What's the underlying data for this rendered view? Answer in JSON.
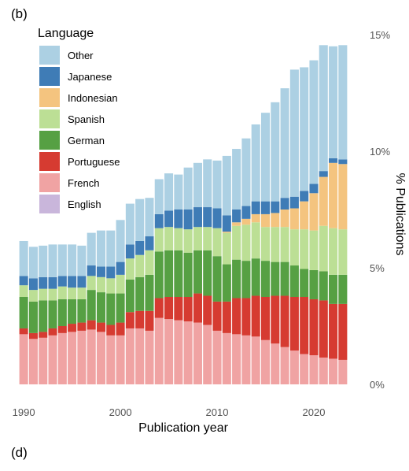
{
  "panel_labels": {
    "top": "(b)",
    "bottom": "(d)"
  },
  "chart_data": {
    "type": "bar",
    "stacked": true,
    "title": "",
    "xlabel": "Publication year",
    "ylabel": "% Publications",
    "ylim": [
      0,
      15
    ],
    "xlim": [
      1989.5,
      2023.5
    ],
    "x_ticks": [
      1990,
      2000,
      2010,
      2020
    ],
    "x_tick_labels": [
      "1990",
      "2000",
      "2010",
      "2020"
    ],
    "y_ticks": [
      0,
      5,
      10,
      15
    ],
    "y_tick_labels": [
      "0%",
      "5%",
      "10%",
      "15%"
    ],
    "y_axis_position": "right",
    "grid": false,
    "legend": {
      "title": "Language",
      "placement": "top-left",
      "entries": [
        "Other",
        "Japanese",
        "Indonesian",
        "Spanish",
        "German",
        "Portuguese",
        "French",
        "English"
      ]
    },
    "colors": {
      "English": "#c9b6db",
      "French": "#f0a3a3",
      "Portuguese": "#d63b31",
      "German": "#56a043",
      "Spanish": "#bcdf95",
      "Indonesian": "#f4c47f",
      "Japanese": "#3f7cb6",
      "Other": "#acd0e3"
    },
    "x": [
      1990,
      1991,
      1992,
      1993,
      1994,
      1995,
      1996,
      1997,
      1998,
      1999,
      2000,
      2001,
      2002,
      2003,
      2004,
      2005,
      2006,
      2007,
      2008,
      2009,
      2010,
      2011,
      2012,
      2013,
      2014,
      2015,
      2016,
      2017,
      2018,
      2019,
      2020,
      2021,
      2022,
      2023
    ],
    "series": [
      {
        "name": "English",
        "values": [
          0,
          0,
          0,
          0,
          0,
          0,
          0,
          0,
          0,
          0,
          0,
          0,
          0,
          0,
          0,
          0,
          0,
          0,
          0,
          0,
          0,
          0,
          0,
          0,
          0,
          0,
          0,
          0,
          0,
          0,
          0,
          0,
          0,
          0
        ]
      },
      {
        "name": "French",
        "values": [
          2.15,
          1.95,
          2.0,
          2.1,
          2.2,
          2.25,
          2.3,
          2.35,
          2.25,
          2.1,
          2.1,
          2.4,
          2.4,
          2.3,
          2.85,
          2.8,
          2.75,
          2.7,
          2.65,
          2.55,
          2.3,
          2.2,
          2.15,
          2.1,
          2.05,
          1.9,
          1.75,
          1.6,
          1.45,
          1.3,
          1.25,
          1.15,
          1.1,
          1.05
        ]
      },
      {
        "name": "Portuguese",
        "values": [
          0.25,
          0.25,
          0.25,
          0.3,
          0.3,
          0.35,
          0.35,
          0.4,
          0.4,
          0.45,
          0.55,
          0.7,
          0.75,
          0.85,
          0.85,
          0.95,
          1.0,
          1.05,
          1.25,
          1.25,
          1.25,
          1.35,
          1.55,
          1.6,
          1.75,
          1.85,
          2.05,
          2.2,
          2.3,
          2.45,
          2.4,
          2.45,
          2.35,
          2.4
        ]
      },
      {
        "name": "German",
        "values": [
          1.35,
          1.35,
          1.35,
          1.2,
          1.15,
          1.05,
          1.0,
          1.3,
          1.3,
          1.35,
          1.25,
          1.4,
          1.45,
          1.55,
          2.0,
          2.0,
          2.0,
          1.9,
          1.85,
          1.95,
          1.95,
          1.6,
          1.65,
          1.6,
          1.6,
          1.55,
          1.45,
          1.45,
          1.35,
          1.2,
          1.25,
          1.25,
          1.25,
          1.25
        ]
      },
      {
        "name": "Spanish",
        "values": [
          0.5,
          0.5,
          0.5,
          0.5,
          0.55,
          0.5,
          0.5,
          0.6,
          0.65,
          0.65,
          0.8,
          0.9,
          0.95,
          1.05,
          1.0,
          1.0,
          0.95,
          1.0,
          1.0,
          1.0,
          1.2,
          1.35,
          1.45,
          1.55,
          1.55,
          1.45,
          1.5,
          1.5,
          1.55,
          1.7,
          1.7,
          1.95,
          2.0,
          1.95
        ]
      },
      {
        "name": "Indonesian",
        "values": [
          0,
          0,
          0,
          0,
          0,
          0,
          0,
          0,
          0,
          0,
          0,
          0,
          0,
          0,
          0,
          0,
          0,
          0,
          0,
          0,
          0,
          0.05,
          0.15,
          0.25,
          0.35,
          0.55,
          0.6,
          0.75,
          0.9,
          1.2,
          1.6,
          2.1,
          2.8,
          2.8
        ]
      },
      {
        "name": "Japanese",
        "values": [
          0.4,
          0.5,
          0.5,
          0.5,
          0.45,
          0.5,
          0.5,
          0.45,
          0.45,
          0.5,
          0.55,
          0.6,
          0.6,
          0.6,
          0.6,
          0.7,
          0.8,
          0.85,
          0.85,
          0.85,
          0.85,
          0.7,
          0.55,
          0.55,
          0.55,
          0.55,
          0.5,
          0.5,
          0.5,
          0.45,
          0.4,
          0.25,
          0.2,
          0.2
        ]
      },
      {
        "name": "Other",
        "values": [
          1.5,
          1.35,
          1.35,
          1.4,
          1.35,
          1.35,
          1.3,
          1.4,
          1.55,
          1.55,
          1.8,
          1.75,
          1.8,
          1.65,
          1.5,
          1.6,
          1.5,
          1.8,
          1.9,
          2.05,
          2.05,
          2.55,
          2.6,
          2.9,
          3.3,
          3.8,
          4.25,
          4.7,
          5.45,
          5.3,
          5.3,
          5.4,
          4.8,
          4.9
        ]
      }
    ]
  }
}
